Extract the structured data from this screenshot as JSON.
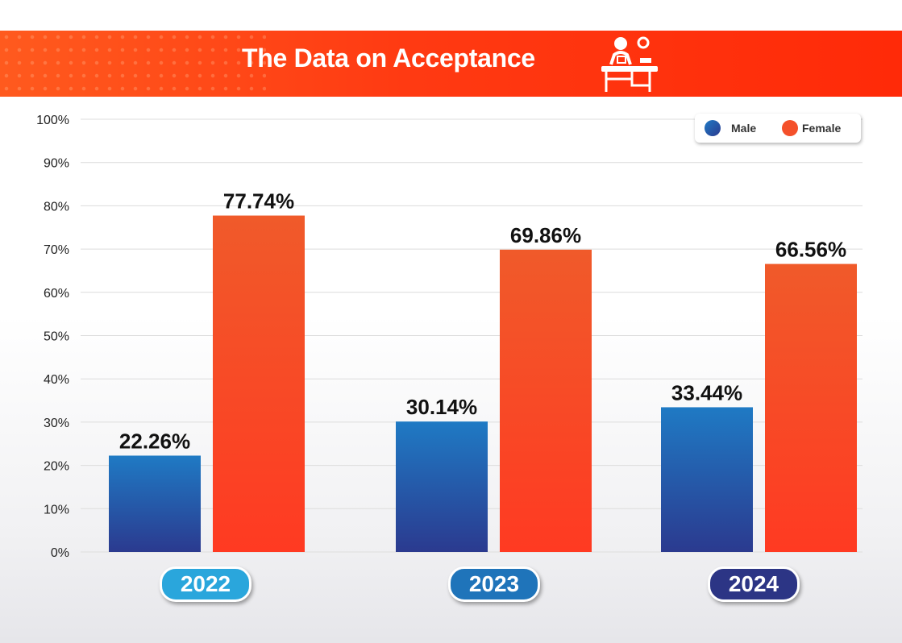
{
  "title": "The Data on Acceptance",
  "colors": {
    "male_top": "#1f7ac4",
    "male_bottom": "#2b3a8f",
    "female_top": "#f05a2a",
    "female_bottom": "#ff3a22",
    "pill_2022": "#2aa6dc",
    "pill_2023": "#1f74ba",
    "pill_2024": "#2c3585"
  },
  "legend": {
    "male": "Male",
    "female": "Female"
  },
  "chart_data": {
    "type": "bar",
    "title": "The Data on Acceptance",
    "categories": [
      "2022",
      "2023",
      "2024"
    ],
    "series": [
      {
        "name": "Male",
        "values": [
          22.26,
          30.14,
          33.44
        ]
      },
      {
        "name": "Female",
        "values": [
          77.74,
          69.86,
          66.56
        ]
      }
    ],
    "data_labels": [
      [
        "22.26%",
        "30.14%",
        "33.44%"
      ],
      [
        "77.74%",
        "69.86%",
        "66.56%"
      ]
    ],
    "ylim": [
      0,
      100
    ],
    "yticks": [
      "0%",
      "10%",
      "20%",
      "30%",
      "40%",
      "50%",
      "60%",
      "70%",
      "80%",
      "90%",
      "100%"
    ],
    "grid": true,
    "legend_position": "top-right"
  }
}
